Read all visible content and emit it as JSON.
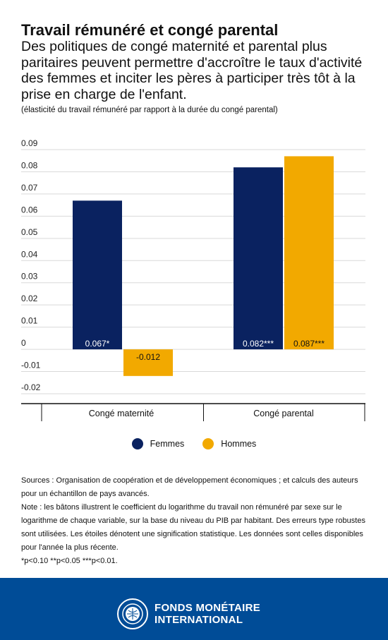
{
  "header": {
    "title": "Travail rémunéré et congé parental",
    "subtitle": "Des politiques de congé maternité et parental plus paritaires peuvent permettre d'accroître le taux d'activité des femmes et inciter les pères à participer très tôt à la prise en charge de l'enfant.",
    "note": "(élasticité du travail rémunéré par rapport à la durée du congé parental)"
  },
  "chart_data": {
    "type": "bar",
    "categories": [
      "Congé maternité",
      "Congé parental"
    ],
    "series": [
      {
        "name": "Femmes",
        "color": "#0a2260",
        "values": [
          0.067,
          0.082
        ],
        "labels": [
          "0.067*",
          "0.082***"
        ]
      },
      {
        "name": "Hommes",
        "color": "#f2a900",
        "values": [
          -0.012,
          0.087
        ],
        "labels": [
          "-0.012",
          "0.087***"
        ]
      }
    ],
    "ylim": [
      -0.02,
      0.09
    ],
    "yticks": [
      0.09,
      0.08,
      0.07,
      0.06,
      0.05,
      0.04,
      0.03,
      0.02,
      0.01,
      0,
      -0.01,
      -0.02
    ],
    "ytick_labels": [
      "0.09",
      "0.08",
      "0.07",
      "0.06",
      "0.05",
      "0.04",
      "0.03",
      "0.02",
      "0.01",
      "0",
      "-0.01",
      "-0.02"
    ],
    "grid": true,
    "legend_position": "bottom-center"
  },
  "legend": {
    "items": [
      {
        "label": "Femmes",
        "color": "#0a2260"
      },
      {
        "label": "Hommes",
        "color": "#f2a900"
      }
    ]
  },
  "sources": {
    "line1": "Sources : Organisation de coopération et de développement économiques ; et calculs des auteurs pour un échantillon de pays avancés.",
    "line2": "Note : les bâtons illustrent le coefficient du logarithme du travail non rémunéré par sexe sur le logarithme de chaque variable, sur la base du niveau du PIB par habitant. Des erreurs type robustes sont utilisées. Les étoiles dénotent une signification statistique. Les données sont celles disponibles pour l'année la plus récente.",
    "line3": "*p<0.10 **p<0.05 ***p<0.01."
  },
  "footer": {
    "line1": "FONDS MONÉTAIRE",
    "line2": "INTERNATIONAL",
    "logo_name": "imf-seal"
  }
}
